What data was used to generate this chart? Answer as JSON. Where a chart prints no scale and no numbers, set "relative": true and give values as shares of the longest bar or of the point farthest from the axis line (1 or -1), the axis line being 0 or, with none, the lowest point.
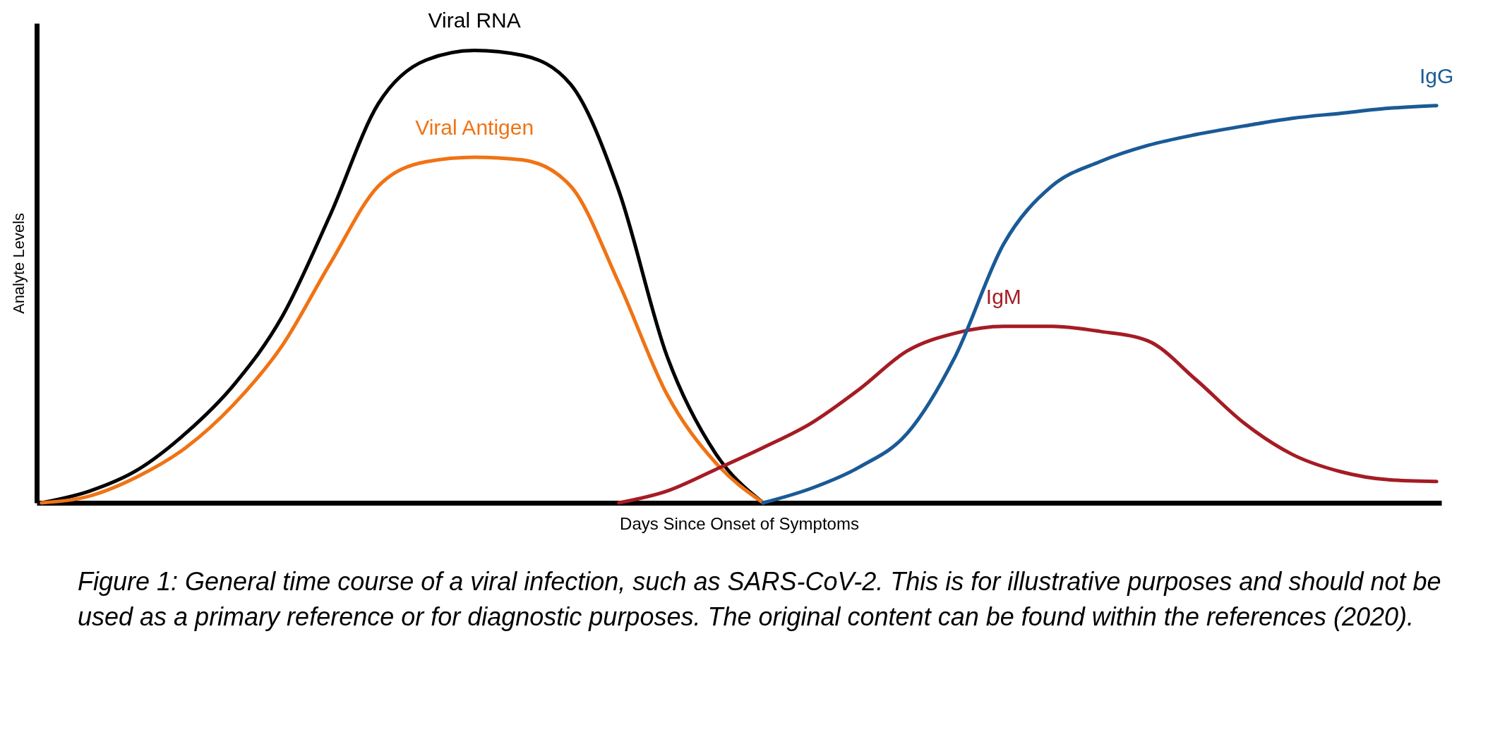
{
  "chart_data": {
    "type": "line",
    "relative": true,
    "xlabel": "Days Since Onset of Symptoms",
    "ylabel": "Analyte Levels",
    "grid": false,
    "legend": false,
    "marker": "none",
    "line_style": "solid",
    "categories": [
      null,
      null,
      null,
      null,
      null,
      null,
      null,
      null,
      null,
      null,
      null,
      null,
      null,
      null,
      null,
      null,
      null,
      null,
      null,
      null,
      null,
      null,
      null,
      null,
      null,
      null,
      null,
      null,
      null,
      null
    ],
    "series": [
      {
        "name": "Viral RNA",
        "color": "#000000",
        "values": [
          0,
          0.026,
          0.073,
          0.154,
          0.261,
          0.411,
          0.636,
          0.882,
          0.979,
          1,
          0.989,
          0.925,
          0.69,
          0.325,
          0.111,
          0,
          null,
          null,
          null,
          null,
          null,
          null,
          null,
          null,
          null,
          null,
          null,
          null,
          null,
          null
        ]
      },
      {
        "name": "Viral Antigen",
        "color": "#f07314",
        "values": [
          0,
          0.015,
          0.058,
          0.122,
          0.218,
          0.347,
          0.529,
          0.7,
          0.754,
          0.764,
          0.758,
          0.7,
          0.486,
          0.24,
          0.09,
          0,
          null,
          null,
          null,
          null,
          null,
          null,
          null,
          null,
          null,
          null,
          null,
          null,
          null,
          null
        ]
      },
      {
        "name": "IgM",
        "color": "#a51c24",
        "values": [
          null,
          null,
          null,
          null,
          null,
          null,
          null,
          null,
          null,
          null,
          null,
          null,
          0,
          0.026,
          0.073,
          0.122,
          0.176,
          0.251,
          0.336,
          0.375,
          0.39,
          0.39,
          0.379,
          0.358,
          0.272,
          0.176,
          0.107,
          0.069,
          0.051,
          0.047
        ]
      },
      {
        "name": "IgG",
        "color": "#1a5a96",
        "values": [
          null,
          null,
          null,
          null,
          null,
          null,
          null,
          null,
          null,
          null,
          null,
          null,
          null,
          null,
          null,
          0,
          0.032,
          0.079,
          0.154,
          0.325,
          0.572,
          0.7,
          0.754,
          0.79,
          0.814,
          0.833,
          0.85,
          0.861,
          0.872,
          0.878
        ]
      }
    ],
    "annotations": [
      "Figure 1: General time course of a viral infection, such as SARS-CoV-2. This is for illustrative purposes and should not be used as a primary reference or for diagnostic purposes. The original content can be found within the references (2020)."
    ]
  }
}
